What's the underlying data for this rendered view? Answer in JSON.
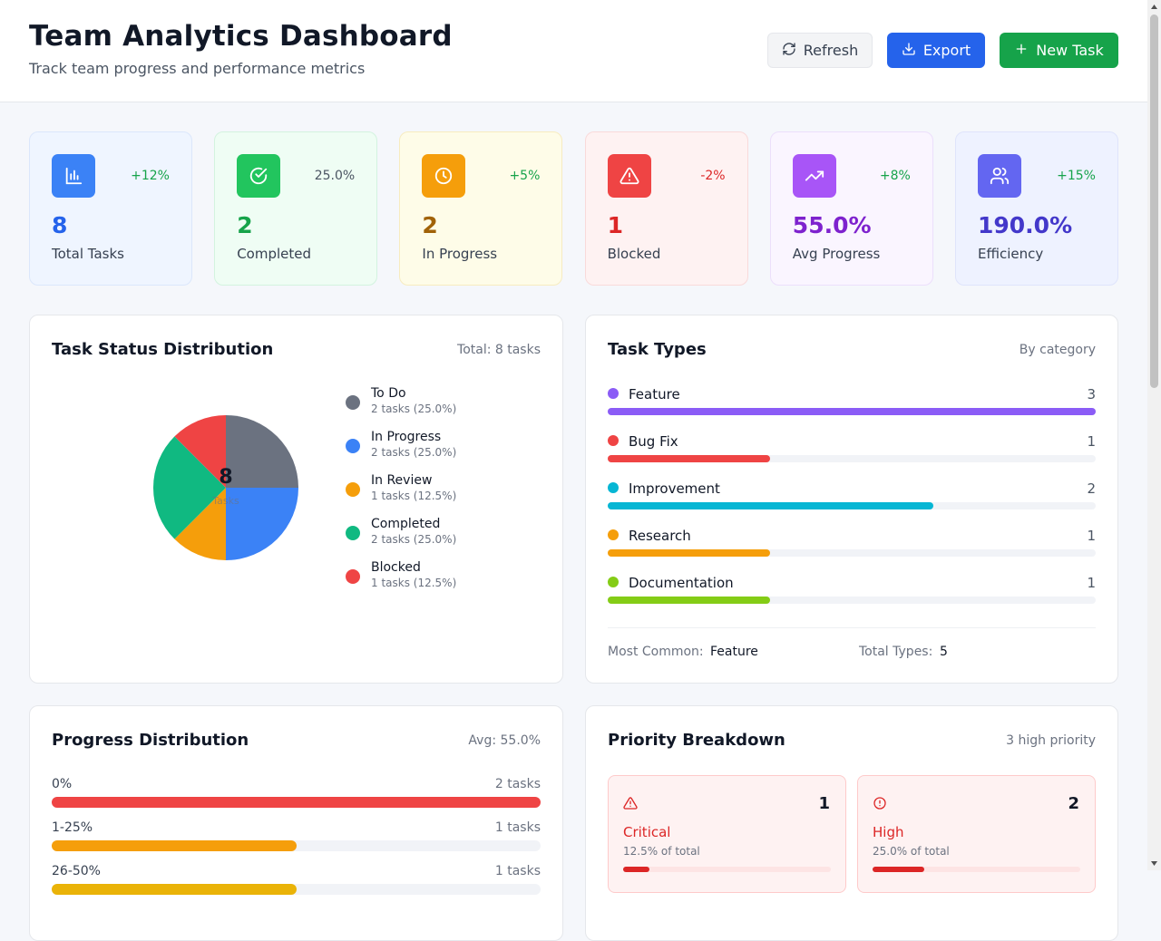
{
  "header": {
    "title": "Team Analytics Dashboard",
    "subtitle": "Track team progress and performance metrics",
    "buttons": {
      "refresh": "Refresh",
      "export": "Export",
      "new_task": "New Task"
    }
  },
  "stats": [
    {
      "value": "8",
      "label": "Total Tasks",
      "change": "+12%",
      "icon": "bar-chart-icon",
      "accent": "#3b82f6",
      "value_color": "#2563eb",
      "change_color": "#16a34a",
      "bg": "#eff5ff",
      "border": "#dbe7fb"
    },
    {
      "value": "2",
      "label": "Completed",
      "change": "25.0%",
      "icon": "check-circle-icon",
      "accent": "#22c55e",
      "value_color": "#16a34a",
      "change_color": "#4b5563",
      "bg": "#effdf4",
      "border": "#d3f3df"
    },
    {
      "value": "2",
      "label": "In Progress",
      "change": "+5%",
      "icon": "clock-icon",
      "accent": "#f59e0b",
      "value_color": "#a16207",
      "change_color": "#16a34a",
      "bg": "#fefce8",
      "border": "#f7ecc0"
    },
    {
      "value": "1",
      "label": "Blocked",
      "change": "-2%",
      "icon": "alert-triangle-icon",
      "accent": "#ef4444",
      "value_color": "#dc2626",
      "change_color": "#dc2626",
      "bg": "#fef2f2",
      "border": "#f9dada"
    },
    {
      "value": "55.0%",
      "label": "Avg Progress",
      "change": "+8%",
      "icon": "trending-up-icon",
      "accent": "#a855f7",
      "value_color": "#7e22ce",
      "change_color": "#16a34a",
      "bg": "#faf5ff",
      "border": "#ecdffb"
    },
    {
      "value": "190.0%",
      "label": "Efficiency",
      "change": "+15%",
      "icon": "users-icon",
      "accent": "#6366f1",
      "value_color": "#4338ca",
      "change_color": "#16a34a",
      "bg": "#eef2ff",
      "border": "#dfe4fb"
    }
  ],
  "status_panel": {
    "title": "Task Status Distribution",
    "meta": "Total: 8 tasks",
    "center_value": "8",
    "center_label": "Tasks"
  },
  "chart_data": {
    "type": "pie",
    "categories": [
      "To Do",
      "In Progress",
      "In Review",
      "Completed",
      "Blocked"
    ],
    "values": [
      2,
      2,
      1,
      2,
      1
    ],
    "colors": [
      "#6b7280",
      "#3b82f6",
      "#f59e0b",
      "#10b981",
      "#ef4444"
    ],
    "legend_sub": [
      "2 tasks (25.0%)",
      "2 tasks (25.0%)",
      "1 tasks (12.5%)",
      "2 tasks (25.0%)",
      "1 tasks (12.5%)"
    ],
    "legend_position": "right"
  },
  "types_panel": {
    "title": "Task Types",
    "meta": "By category",
    "items": [
      {
        "name": "Feature",
        "count": "3",
        "value": 3,
        "color": "#8b5cf6"
      },
      {
        "name": "Bug Fix",
        "count": "1",
        "value": 1,
        "color": "#ef4444"
      },
      {
        "name": "Improvement",
        "count": "2",
        "value": 2,
        "color": "#06b6d4"
      },
      {
        "name": "Research",
        "count": "1",
        "value": 1,
        "color": "#f59e0b"
      },
      {
        "name": "Documentation",
        "count": "1",
        "value": 1,
        "color": "#84cc16"
      }
    ],
    "max": 3,
    "most_common_label": "Most Common:",
    "most_common_value": "Feature",
    "total_types_label": "Total Types:",
    "total_types_value": "5"
  },
  "progress_panel": {
    "title": "Progress Distribution",
    "meta": "Avg: 55.0%",
    "max": 2,
    "items": [
      {
        "label": "0%",
        "count": "2 tasks",
        "value": 2,
        "color": "#ef4444"
      },
      {
        "label": "1-25%",
        "count": "1 tasks",
        "value": 1,
        "color": "#f59e0b"
      },
      {
        "label": "26-50%",
        "count": "1 tasks",
        "value": 1,
        "color": "#eab308"
      }
    ]
  },
  "priority_panel": {
    "title": "Priority Breakdown",
    "meta": "3 high priority",
    "cards": [
      {
        "name": "Critical",
        "count": "1",
        "pct": "12.5% of total",
        "fraction": 0.125,
        "icon": "alert-triangle-icon"
      },
      {
        "name": "High",
        "count": "2",
        "pct": "25.0% of total",
        "fraction": 0.25,
        "icon": "alert-circle-icon"
      }
    ]
  }
}
